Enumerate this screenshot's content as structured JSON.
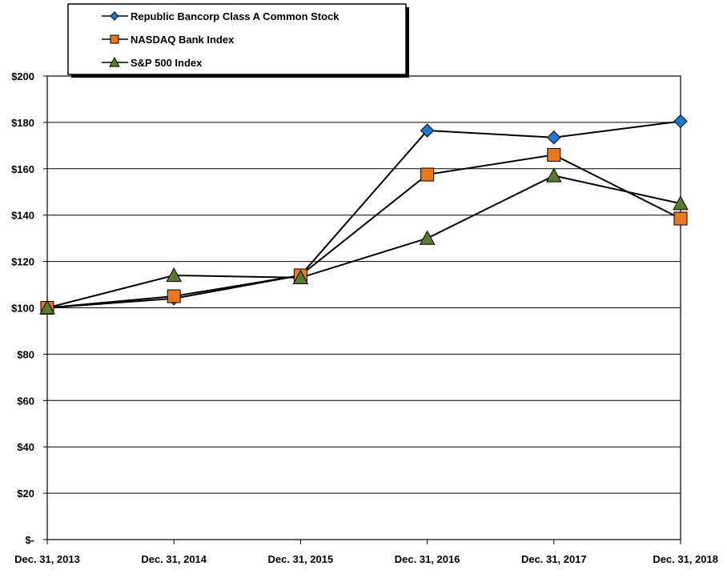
{
  "chart_data": {
    "type": "line",
    "title": "",
    "xlabel": "",
    "ylabel": "",
    "ylim": [
      0,
      200
    ],
    "yticks": [
      0,
      20,
      40,
      60,
      80,
      100,
      120,
      140,
      160,
      180,
      200
    ],
    "ytick_labels": [
      "$-",
      "$20",
      "$40",
      "$60",
      "$80",
      "$100",
      "$120",
      "$140",
      "$160",
      "$180",
      "$200"
    ],
    "categories": [
      "Dec. 31, 2013",
      "Dec. 31, 2014",
      "Dec. 31, 2015",
      "Dec. 31, 2016",
      "Dec. 31, 2017",
      "Dec. 31, 2018"
    ],
    "grid": true,
    "legend_position": "top-left",
    "series": [
      {
        "name": "Republic Bancorp Class A Common Stock",
        "marker": "diamond",
        "color": "#1f78c8",
        "values": [
          100,
          104,
          114,
          176.5,
          173.5,
          180.5
        ]
      },
      {
        "name": "NASDAQ Bank Index",
        "marker": "square",
        "color": "#e87722",
        "values": [
          100,
          105,
          114,
          157.5,
          166,
          138.5
        ]
      },
      {
        "name": "S&P 500 Index",
        "marker": "triangle",
        "color": "#5a7a2e",
        "values": [
          100,
          114,
          113,
          130,
          157,
          145
        ]
      }
    ]
  }
}
